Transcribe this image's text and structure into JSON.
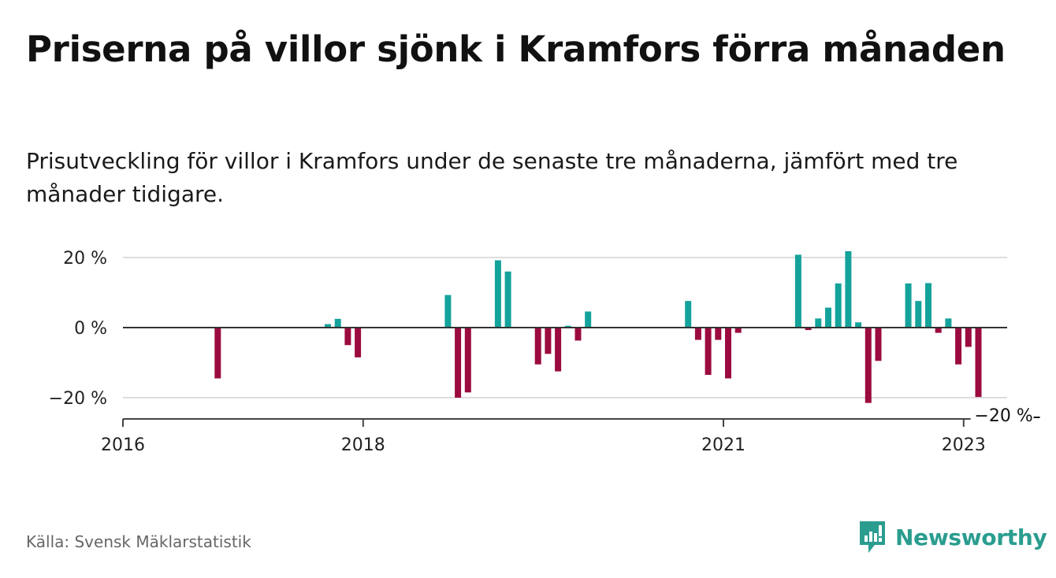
{
  "header": {
    "title": "Priserna på villor sjönk i Kramfors förra månaden",
    "subtitle": "Prisutveckling för villor i Kramfors under de senaste tre månaderna, jämfört med tre månader tidigare."
  },
  "footer": {
    "source": "Källa: Svensk Mäklarstatistik",
    "brand": "Newsworthy"
  },
  "colors": {
    "positive": "#14a39b",
    "negative": "#9b0b3f",
    "grid": "#dddddd",
    "zero_line": "#333333"
  },
  "chart_data": {
    "type": "bar",
    "x_unit": "month",
    "xlim": [
      "2016-01",
      "2023-06"
    ],
    "ylim": [
      -25,
      25
    ],
    "yticks": [
      20,
      0,
      -20
    ],
    "ytick_labels": [
      "20 %",
      "0 %",
      "−20 %"
    ],
    "xticks": [
      "2016-01",
      "2018-01",
      "2021-01",
      "2023-01"
    ],
    "xtick_labels": [
      "2016",
      "2018",
      "2021",
      "2023"
    ],
    "grid": true,
    "annotation": {
      "x": "2023-05",
      "y": -19.8,
      "label": "−20 %"
    },
    "series": [
      {
        "x": [
          "2016-10",
          "2017-09",
          "2017-10",
          "2017-11",
          "2017-12",
          "2018-09",
          "2018-10",
          "2018-11",
          "2019-02",
          "2019-03",
          "2019-06",
          "2019-07",
          "2019-08",
          "2019-09",
          "2019-10",
          "2019-11",
          "2020-09",
          "2020-10",
          "2020-11",
          "2020-12",
          "2021-01",
          "2021-02",
          "2021-08",
          "2021-09",
          "2021-10",
          "2021-11",
          "2021-12",
          "2022-01",
          "2022-02",
          "2022-03",
          "2022-04",
          "2022-07",
          "2022-08",
          "2022-09",
          "2022-10",
          "2022-11",
          "2022-12",
          "2023-01",
          "2023-02",
          "2023-03"
        ],
        "values": [
          -14.5,
          1,
          2.5,
          -5,
          -8.5,
          9.3,
          -20,
          -18.5,
          19.2,
          16,
          -10.5,
          -7.5,
          -12.5,
          0.5,
          -3.7,
          4.6,
          7.6,
          -3.5,
          -13.5,
          -3.5,
          -14.5,
          -1.5,
          20.8,
          -0.7,
          2.6,
          5.7,
          12.6,
          21.8,
          1.5,
          -21.5,
          -9.5,
          12.6,
          7.6,
          12.7,
          -1.5,
          2.6,
          -10.5,
          -5.5,
          -19.8,
          0
        ]
      }
    ]
  }
}
